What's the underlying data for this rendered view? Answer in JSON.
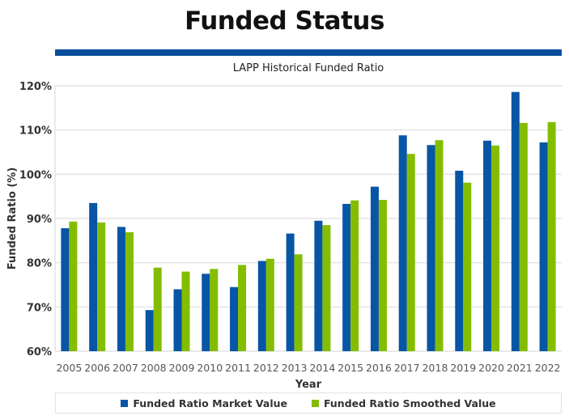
{
  "header": {
    "title": "Funded Status"
  },
  "colors": {
    "rule": "#0a4f9e",
    "market": "#0656a5",
    "smoothed": "#84bd00"
  },
  "chart_data": {
    "type": "bar",
    "title": "LAPP Historical Funded Ratio",
    "xlabel": "Year",
    "ylabel": "Funded Ratio (%)",
    "ylim": [
      60,
      120
    ],
    "yticks": [
      "60%",
      "70%",
      "80%",
      "90%",
      "100%",
      "110%",
      "120%"
    ],
    "grid": true,
    "legend": "bottom",
    "categories": [
      "2005",
      "2006",
      "2007",
      "2008",
      "2009",
      "2010",
      "2011",
      "2012",
      "2013",
      "2014",
      "2015",
      "2016",
      "2017",
      "2018",
      "2019",
      "2020",
      "2021",
      "2022"
    ],
    "series": [
      {
        "name": "Funded Ratio Market Value",
        "values": [
          87.8,
          93.5,
          88.1,
          69.3,
          74.0,
          77.5,
          74.5,
          80.4,
          86.6,
          89.5,
          93.3,
          97.2,
          108.8,
          106.6,
          100.8,
          107.6,
          118.6,
          107.2
        ]
      },
      {
        "name": "Funded Ratio Smoothed Value",
        "values": [
          89.3,
          89.1,
          86.9,
          78.9,
          78.0,
          78.6,
          79.5,
          80.9,
          81.9,
          88.5,
          94.1,
          94.2,
          104.6,
          107.7,
          98.1,
          106.5,
          111.6,
          111.8
        ]
      }
    ]
  }
}
